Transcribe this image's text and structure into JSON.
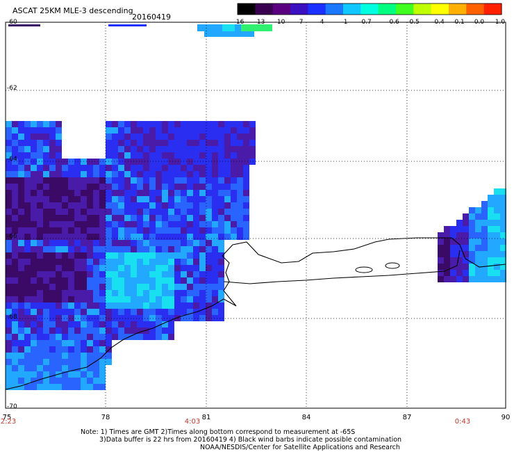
{
  "title": "ASCAT 25KM MLE-3 descending",
  "date": "20160419",
  "colorbar": {
    "labels": [
      "-16",
      "-13",
      "-10",
      "-7",
      "-4",
      "-1",
      "-0.7",
      "-0.6",
      "-0.5",
      "-0.4",
      "-0.1",
      "0.0",
      "1.0"
    ],
    "colors": [
      "#000000",
      "#3a0050",
      "#5a0080",
      "#3a10c0",
      "#1a30ff",
      "#1a78ff",
      "#10c8ff",
      "#00ffe0",
      "#00ff80",
      "#40ff20",
      "#c0ff00",
      "#ffff00",
      "#ffb000",
      "#ff6000",
      "#ff2000"
    ]
  },
  "latitude_labels": [
    "-60",
    "-62",
    "-64",
    "-66",
    "-68",
    "-70"
  ],
  "longitude_labels": [
    "75",
    "78",
    "81",
    "84",
    "87",
    "90"
  ],
  "time_labels": [
    "2:23",
    "4:03",
    "0:43"
  ],
  "swath_colors": {
    "dark": "#3b0a66",
    "purple": "#4a1aa8",
    "blue": "#2a2ef0",
    "mid": "#2a64ff",
    "light": "#22a8ff",
    "cyan": "#18e0f0",
    "green": "#30f070"
  },
  "notes": [
    "Note: 1) Times are GMT 2)Times along bottom correspond to measurement at -65S",
    "3)Data buffer is 22 hrs from 20160419 4) Black wind barbs indicate possible contamination",
    "NOAA/NESDIS/Center for Satellite Applications and Research"
  ]
}
